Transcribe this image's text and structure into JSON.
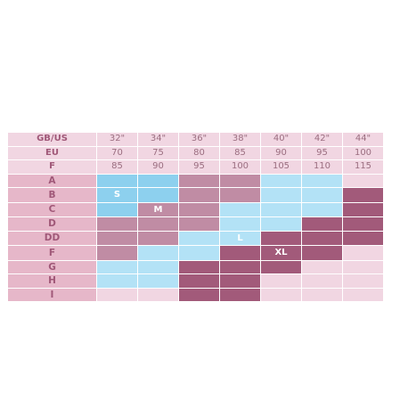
{
  "header_rows": [
    {
      "label": "GB/US",
      "values": [
        "32\"",
        "34\"",
        "36\"",
        "38\"",
        "40\"",
        "42\"",
        "44\""
      ]
    },
    {
      "label": "EU",
      "values": [
        "70",
        "75",
        "80",
        "85",
        "90",
        "95",
        "100"
      ]
    },
    {
      "label": "F",
      "values": [
        "85",
        "90",
        "95",
        "100",
        "105",
        "110",
        "115"
      ]
    }
  ],
  "cup_rows": [
    {
      "label": "A",
      "cells": [
        "blue",
        "blue",
        "mauve",
        "mauve",
        "lblue",
        "lblue",
        "light"
      ]
    },
    {
      "label": "B",
      "cells": [
        "blue",
        "blue",
        "mauve",
        "mauve",
        "lblue",
        "lblue",
        "dark"
      ]
    },
    {
      "label": "C",
      "cells": [
        "blue",
        "mauve",
        "mauve",
        "lblue",
        "lblue",
        "lblue",
        "dark"
      ]
    },
    {
      "label": "D",
      "cells": [
        "mauve",
        "mauve",
        "mauve",
        "lblue",
        "lblue",
        "dark",
        "dark"
      ]
    },
    {
      "label": "DD",
      "cells": [
        "mauve",
        "mauve",
        "lblue",
        "lblue",
        "dark",
        "dark",
        "dark"
      ]
    },
    {
      "label": "F",
      "cells": [
        "mauve",
        "lblue",
        "lblue",
        "dark",
        "dark",
        "dark",
        "light"
      ]
    },
    {
      "label": "G",
      "cells": [
        "lblue",
        "lblue",
        "dark",
        "dark",
        "dark",
        "light",
        "light"
      ]
    },
    {
      "label": "H",
      "cells": [
        "lblue",
        "lblue",
        "dark",
        "dark",
        "light",
        "light",
        "light"
      ]
    },
    {
      "label": "I",
      "cells": [
        "light",
        "light",
        "dark",
        "dark",
        "light",
        "light",
        "light"
      ]
    }
  ],
  "size_marks": [
    {
      "label": "S",
      "row": 1,
      "col": 0
    },
    {
      "label": "M",
      "row": 2,
      "col": 1
    },
    {
      "label": "L",
      "row": 4,
      "col": 3
    },
    {
      "label": "XL",
      "row": 5,
      "col": 4
    }
  ],
  "colors": {
    "light": "#f1d6e2",
    "band_label": "#e6b7c9",
    "blue": "#8dd0ee",
    "lblue": "#b3e2f6",
    "mauve": "#c08ca4",
    "dark": "#a25a7a",
    "label_text": "#a05878",
    "header_text": "#9b6e80"
  }
}
